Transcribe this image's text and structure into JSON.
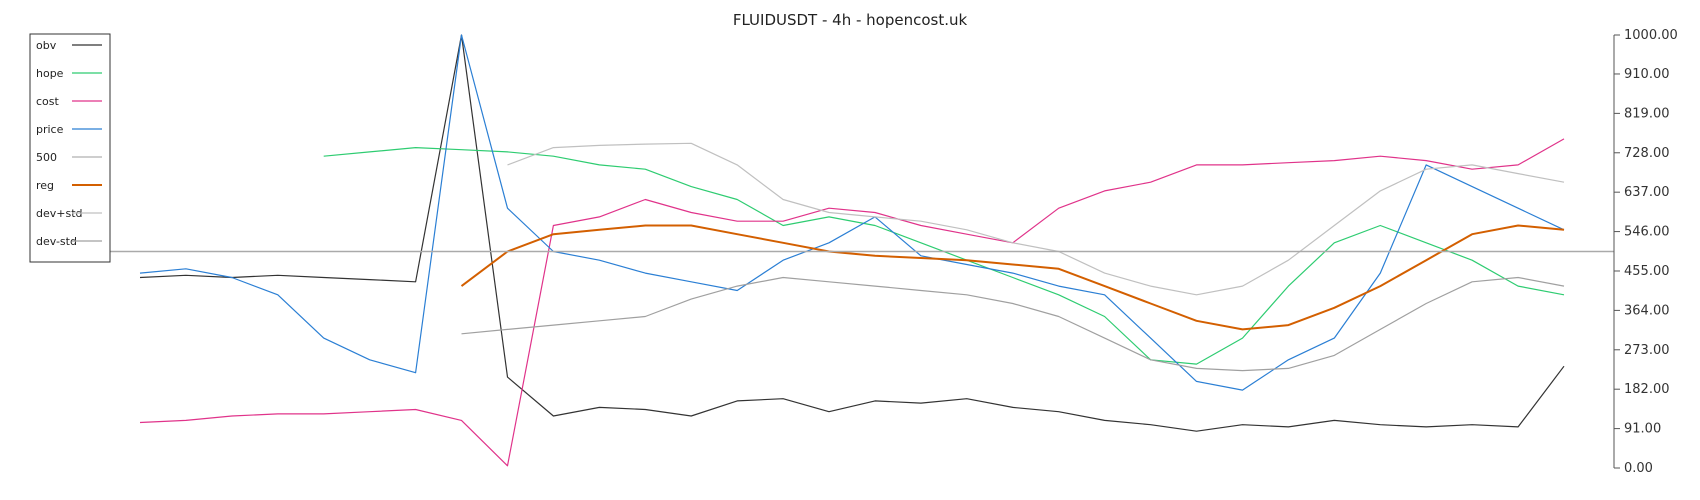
{
  "chart_data": {
    "type": "line",
    "title": "FLUIDUSDT - 4h - hopencost.uk",
    "ylim": [
      0,
      1000
    ],
    "y_ticks": [
      "1000.00",
      "910.00",
      "819.00",
      "728.00",
      "637.00",
      "546.00",
      "455.00",
      "364.00",
      "273.00",
      "182.00",
      "91.00",
      "0.00"
    ],
    "y_tick_values": [
      1000,
      910,
      819,
      728,
      637,
      546,
      455,
      364,
      273,
      182,
      91,
      0
    ],
    "reference_line": 500,
    "grid": false,
    "legend_position": "top-left",
    "legend": [
      {
        "label": "obv",
        "color": "#333333"
      },
      {
        "label": "hope",
        "color": "#2ecc71"
      },
      {
        "label": "cost",
        "color": "#e0338a"
      },
      {
        "label": "price",
        "color": "#2b7fd4"
      },
      {
        "label": "500",
        "color": "#b0b0b0"
      },
      {
        "label": "reg",
        "color": "#d35f00"
      },
      {
        "label": "dev+std",
        "color": "#c0c0c0"
      },
      {
        "label": "dev-std",
        "color": "#a0a0a0"
      }
    ],
    "x": [
      0,
      10,
      20,
      30,
      40,
      50,
      60,
      70,
      80,
      90,
      100,
      110,
      120,
      130,
      140,
      150,
      160,
      170,
      180,
      190,
      200,
      210,
      220,
      230,
      240,
      250,
      260,
      270,
      280,
      290,
      300,
      310
    ],
    "series": [
      {
        "name": "obv",
        "color": "#333333",
        "width": 1.2,
        "values": [
          440,
          445,
          440,
          445,
          440,
          435,
          430,
          1000,
          210,
          120,
          140,
          135,
          120,
          155,
          160,
          130,
          155,
          150,
          160,
          140,
          130,
          110,
          100,
          85,
          100,
          95,
          110,
          100,
          95,
          100,
          95,
          235
        ]
      },
      {
        "name": "hope",
        "color": "#2ecc71",
        "width": 1.2,
        "values": [
          null,
          null,
          null,
          null,
          720,
          730,
          740,
          735,
          730,
          720,
          700,
          690,
          650,
          620,
          560,
          580,
          560,
          520,
          480,
          440,
          400,
          350,
          250,
          240,
          300,
          420,
          520,
          560,
          520,
          480,
          420,
          400
        ]
      },
      {
        "name": "cost",
        "color": "#e0338a",
        "width": 1.2,
        "values": [
          105,
          110,
          120,
          125,
          125,
          130,
          135,
          110,
          5,
          560,
          580,
          620,
          590,
          570,
          570,
          600,
          590,
          560,
          540,
          520,
          600,
          640,
          660,
          700,
          700,
          705,
          710,
          720,
          710,
          690,
          700,
          760
        ]
      },
      {
        "name": "price",
        "color": "#2b7fd4",
        "width": 1.2,
        "values": [
          450,
          460,
          440,
          400,
          300,
          250,
          220,
          1000,
          600,
          500,
          480,
          450,
          430,
          410,
          480,
          520,
          580,
          490,
          470,
          450,
          420,
          400,
          300,
          200,
          180,
          250,
          300,
          450,
          700,
          650,
          600,
          550
        ]
      },
      {
        "name": "reg",
        "color": "#d35f00",
        "width": 2,
        "values": [
          null,
          null,
          null,
          null,
          null,
          null,
          null,
          420,
          500,
          540,
          550,
          560,
          560,
          540,
          520,
          500,
          490,
          485,
          480,
          470,
          460,
          420,
          380,
          340,
          320,
          330,
          370,
          420,
          480,
          540,
          560,
          550
        ]
      },
      {
        "name": "dev+std",
        "color": "#c0c0c0",
        "width": 1.2,
        "values": [
          null,
          null,
          null,
          null,
          null,
          null,
          null,
          null,
          700,
          740,
          745,
          748,
          750,
          700,
          620,
          590,
          580,
          570,
          550,
          520,
          500,
          450,
          420,
          400,
          420,
          480,
          560,
          640,
          690,
          700,
          680,
          660
        ]
      },
      {
        "name": "dev-std",
        "color": "#a0a0a0",
        "width": 1.2,
        "values": [
          null,
          null,
          null,
          null,
          null,
          null,
          null,
          310,
          320,
          330,
          340,
          350,
          390,
          420,
          440,
          430,
          420,
          410,
          400,
          380,
          350,
          300,
          250,
          230,
          225,
          230,
          260,
          320,
          380,
          430,
          440,
          420
        ]
      }
    ]
  }
}
